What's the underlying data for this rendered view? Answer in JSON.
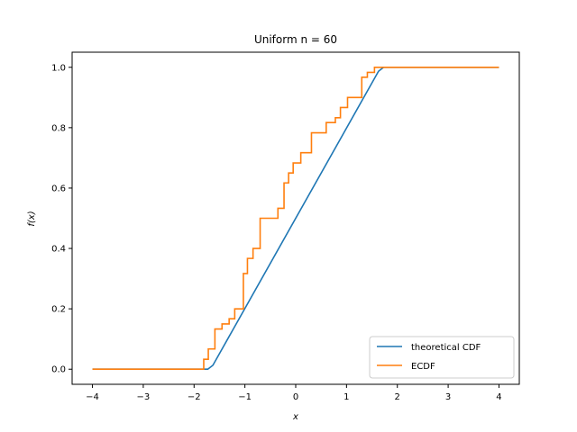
{
  "chart_data": {
    "type": "line",
    "title": "Uniform n = 60",
    "xlabel": "x",
    "ylabel": "f(x)",
    "xlim": [
      -4.4,
      4.4
    ],
    "ylim": [
      -0.05,
      1.05
    ],
    "xticks": [
      -4,
      -3,
      -2,
      -1,
      0,
      1,
      2,
      3,
      4
    ],
    "xtick_labels": [
      "−4",
      "−3",
      "−2",
      "−1",
      "0",
      "1",
      "2",
      "3",
      "4"
    ],
    "yticks": [
      0.0,
      0.2,
      0.4,
      0.6,
      0.8,
      1.0
    ],
    "ytick_labels": [
      "0.0",
      "0.2",
      "0.4",
      "0.6",
      "0.8",
      "1.0"
    ],
    "grid": false,
    "legend_position": "lower-right",
    "series": [
      {
        "name": "theoretical CDF",
        "color": "#1f77b4",
        "style": "line",
        "x": [
          -4,
          -1.73,
          -1.63,
          1.63,
          1.73,
          4
        ],
        "y": [
          0,
          0,
          0.013,
          0.987,
          1,
          1
        ]
      },
      {
        "name": "ECDF",
        "color": "#ff7f0e",
        "style": "step-post",
        "x": [
          -4,
          -1.81,
          -1.72,
          -1.59,
          -1.45,
          -1.31,
          -1.2,
          -1.03,
          -0.95,
          -0.84,
          -0.7,
          -0.58,
          -0.35,
          -0.23,
          -0.14,
          -0.05,
          0.1,
          0.31,
          0.6,
          0.78,
          0.88,
          1.02,
          1.3,
          1.41,
          1.55,
          1.67,
          4
        ],
        "y": [
          0,
          0.033,
          0.067,
          0.133,
          0.15,
          0.167,
          0.2,
          0.317,
          0.367,
          0.4,
          0.5,
          0.5,
          0.533,
          0.617,
          0.65,
          0.683,
          0.717,
          0.783,
          0.817,
          0.833,
          0.867,
          0.9,
          0.967,
          0.983,
          1.0,
          1.0,
          1.0
        ]
      }
    ]
  }
}
